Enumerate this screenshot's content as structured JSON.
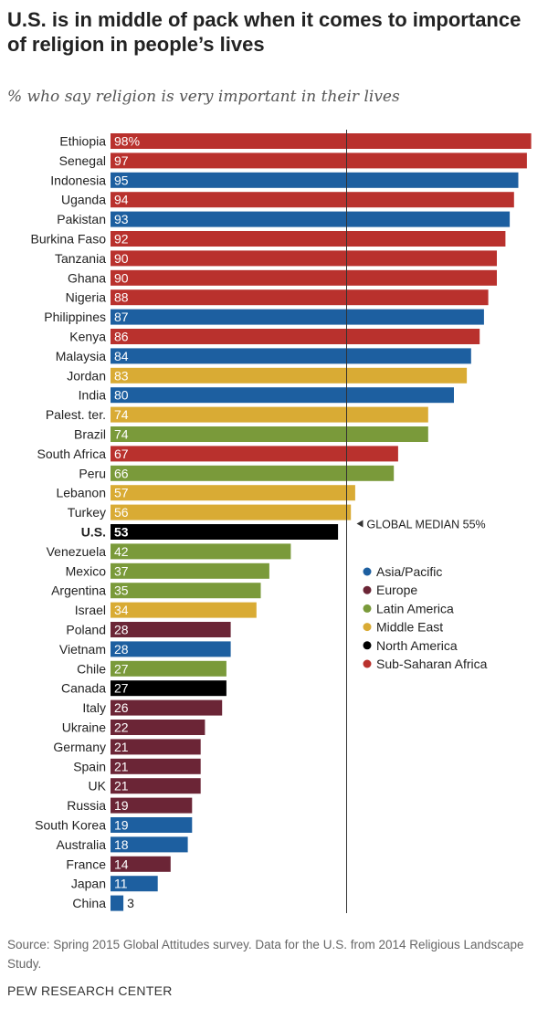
{
  "title": "U.S. is in middle of pack when it comes to importance of religion in people’s lives",
  "subtitle": "% who say religion is very important in their lives",
  "source": "Source: Spring 2015 Global Attitudes survey. Data for the U.S. from 2014 Religious Landscape Study.",
  "organization": "PEW RESEARCH CENTER",
  "chart_data": {
    "type": "bar",
    "orientation": "horizontal",
    "xlim": [
      0,
      100
    ],
    "categories": [
      "Ethiopia",
      "Senegal",
      "Indonesia",
      "Uganda",
      "Pakistan",
      "Burkina Faso",
      "Tanzania",
      "Ghana",
      "Nigeria",
      "Philippines",
      "Kenya",
      "Malaysia",
      "Jordan",
      "India",
      "Palest. ter.",
      "Brazil",
      "South Africa",
      "Peru",
      "Lebanon",
      "Turkey",
      "U.S.",
      "Venezuela",
      "Mexico",
      "Argentina",
      "Israel",
      "Poland",
      "Vietnam",
      "Chile",
      "Canada",
      "Italy",
      "Ukraine",
      "Germany",
      "Spain",
      "UK",
      "Russia",
      "South Korea",
      "Australia",
      "France",
      "Japan",
      "China"
    ],
    "values": [
      98,
      97,
      95,
      94,
      93,
      92,
      90,
      90,
      88,
      87,
      86,
      84,
      83,
      80,
      74,
      74,
      67,
      66,
      57,
      56,
      53,
      42,
      37,
      35,
      34,
      28,
      28,
      27,
      27,
      26,
      22,
      21,
      21,
      21,
      19,
      19,
      18,
      14,
      11,
      3
    ],
    "value_labels": [
      "98%",
      "97",
      "95",
      "94",
      "93",
      "92",
      "90",
      "90",
      "88",
      "87",
      "86",
      "84",
      "83",
      "80",
      "74",
      "74",
      "67",
      "66",
      "57",
      "56",
      "53",
      "42",
      "37",
      "35",
      "34",
      "28",
      "28",
      "27",
      "27",
      "26",
      "22",
      "21",
      "21",
      "21",
      "19",
      "19",
      "18",
      "14",
      "11",
      "3"
    ],
    "regions": [
      "Sub-Saharan Africa",
      "Sub-Saharan Africa",
      "Asia/Pacific",
      "Sub-Saharan Africa",
      "Asia/Pacific",
      "Sub-Saharan Africa",
      "Sub-Saharan Africa",
      "Sub-Saharan Africa",
      "Sub-Saharan Africa",
      "Asia/Pacific",
      "Sub-Saharan Africa",
      "Asia/Pacific",
      "Middle East",
      "Asia/Pacific",
      "Middle East",
      "Latin America",
      "Sub-Saharan Africa",
      "Latin America",
      "Middle East",
      "Middle East",
      "North America",
      "Latin America",
      "Latin America",
      "Latin America",
      "Middle East",
      "Europe",
      "Asia/Pacific",
      "Latin America",
      "North America",
      "Europe",
      "Europe",
      "Europe",
      "Europe",
      "Europe",
      "Europe",
      "Asia/Pacific",
      "Asia/Pacific",
      "Europe",
      "Asia/Pacific",
      "Asia/Pacific"
    ],
    "highlight": "U.S.",
    "median": {
      "value": 55,
      "label": "GLOBAL MEDIAN 55%"
    },
    "legend": [
      {
        "name": "Asia/Pacific",
        "color": "#1d5fa0"
      },
      {
        "name": "Europe",
        "color": "#6b2536"
      },
      {
        "name": "Latin America",
        "color": "#7a9a3a"
      },
      {
        "name": "Middle East",
        "color": "#d9ab34"
      },
      {
        "name": "North America",
        "color": "#000000"
      },
      {
        "name": "Sub-Saharan Africa",
        "color": "#b9312d"
      }
    ]
  }
}
